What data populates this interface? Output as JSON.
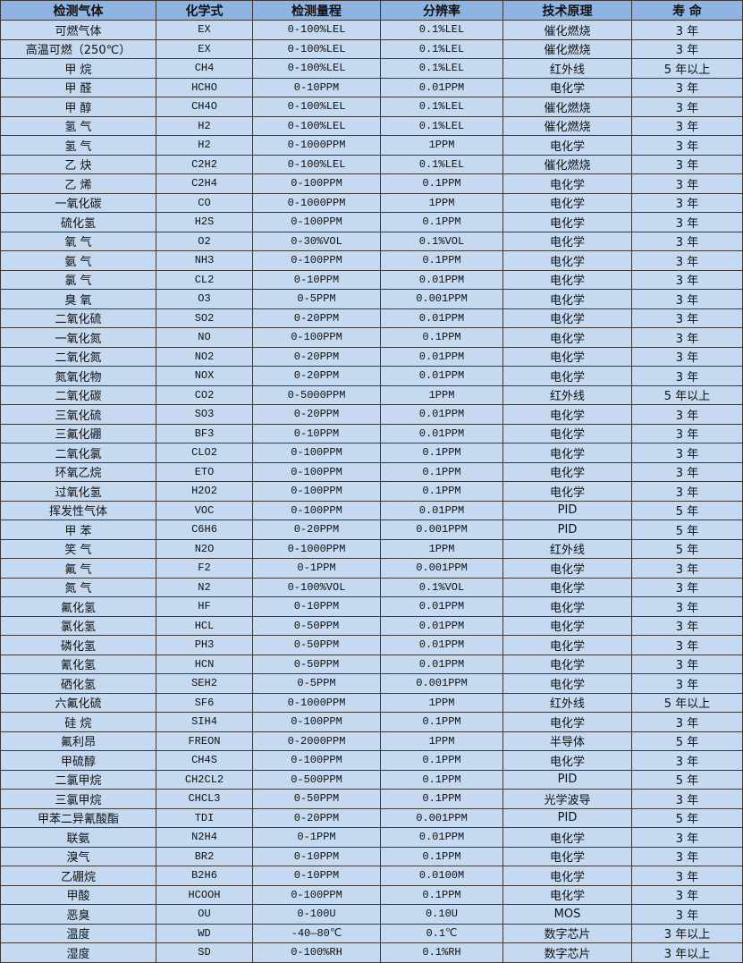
{
  "table": {
    "headers": [
      "检测气体",
      "化学式",
      "检测量程",
      "分辨率",
      "技术原理",
      "寿 命"
    ],
    "rows": [
      [
        "可燃气体",
        "EX",
        "0-100%LEL",
        "0.1%LEL",
        "催化燃烧",
        "3 年"
      ],
      [
        "高温可燃（250℃）",
        "EX",
        "0-100%LEL",
        "0.1%LEL",
        "催化燃烧",
        "3 年"
      ],
      [
        "甲 烷",
        "CH4",
        "0-100%LEL",
        "0.1%LEL",
        "红外线",
        "5 年以上"
      ],
      [
        "甲 醛",
        "HCHO",
        "0-10PPM",
        "0.01PPM",
        "电化学",
        "3 年"
      ],
      [
        "甲 醇",
        "CH4O",
        "0-100%LEL",
        "0.1%LEL",
        "催化燃烧",
        "3 年"
      ],
      [
        "氢 气",
        "H2",
        "0-100%LEL",
        "0.1%LEL",
        "催化燃烧",
        "3 年"
      ],
      [
        "氢 气",
        "H2",
        "0-1000PPM",
        "1PPM",
        "电化学",
        "3 年"
      ],
      [
        "乙 炔",
        "C2H2",
        "0-100%LEL",
        "0.1%LEL",
        "催化燃烧",
        "3 年"
      ],
      [
        "乙 烯",
        "C2H4",
        "0-100PPM",
        "0.1PPM",
        "电化学",
        "3 年"
      ],
      [
        "一氧化碳",
        "CO",
        "0-1000PPM",
        "1PPM",
        "电化学",
        "3 年"
      ],
      [
        "硫化氢",
        "H2S",
        "0-100PPM",
        "0.1PPM",
        "电化学",
        "3 年"
      ],
      [
        "氧 气",
        "O2",
        "0-30%VOL",
        "0.1%VOL",
        "电化学",
        "3 年"
      ],
      [
        "氨 气",
        "NH3",
        "0-100PPM",
        "0.1PPM",
        "电化学",
        "3 年"
      ],
      [
        "氯 气",
        "CL2",
        "0-10PPM",
        "0.01PPM",
        "电化学",
        "3 年"
      ],
      [
        "臭 氧",
        "O3",
        "0-5PPM",
        "0.001PPM",
        "电化学",
        "3 年"
      ],
      [
        "二氧化硫",
        "SO2",
        "0-20PPM",
        "0.01PPM",
        "电化学",
        "3 年"
      ],
      [
        "一氧化氮",
        "NO",
        "0-100PPM",
        "0.1PPM",
        "电化学",
        "3 年"
      ],
      [
        "二氧化氮",
        "NO2",
        "0-20PPM",
        "0.01PPM",
        "电化学",
        "3 年"
      ],
      [
        "氮氧化物",
        "NOX",
        "0-20PPM",
        "0.01PPM",
        "电化学",
        "3 年"
      ],
      [
        "二氧化碳",
        "CO2",
        "0-5000PPM",
        "1PPM",
        "红外线",
        "5 年以上"
      ],
      [
        "三氧化硫",
        "SO3",
        "0-20PPM",
        "0.01PPM",
        "电化学",
        "3 年"
      ],
      [
        "三氟化硼",
        "BF3",
        "0-10PPM",
        "0.01PPM",
        "电化学",
        "3 年"
      ],
      [
        "二氧化氯",
        "CLO2",
        "0-100PPM",
        "0.1PPM",
        "电化学",
        "3 年"
      ],
      [
        "环氧乙烷",
        "ETO",
        "0-100PPM",
        "0.1PPM",
        "电化学",
        "3 年"
      ],
      [
        "过氧化氢",
        "H2O2",
        "0-100PPM",
        "0.1PPM",
        "电化学",
        "3 年"
      ],
      [
        "挥发性气体",
        "VOC",
        "0-100PPM",
        "0.01PPM",
        "PID",
        "5 年"
      ],
      [
        "甲 苯",
        "C6H6",
        "0-20PPM",
        "0.001PPM",
        "PID",
        "5 年"
      ],
      [
        "笑 气",
        "N2O",
        "0-1000PPM",
        "1PPM",
        "红外线",
        "5 年"
      ],
      [
        "氟 气",
        "F2",
        "0-1PPM",
        "0.001PPM",
        "电化学",
        "3 年"
      ],
      [
        "氮 气",
        "N2",
        "0-100%VOL",
        "0.1%VOL",
        "电化学",
        "3 年"
      ],
      [
        "氟化氢",
        "HF",
        "0-10PPM",
        "0.01PPM",
        "电化学",
        "3 年"
      ],
      [
        "氯化氢",
        "HCL",
        "0-50PPM",
        "0.01PPM",
        "电化学",
        "3 年"
      ],
      [
        "磷化氢",
        "PH3",
        "0-50PPM",
        "0.01PPM",
        "电化学",
        "3 年"
      ],
      [
        "氰化氢",
        "HCN",
        "0-50PPM",
        "0.01PPM",
        "电化学",
        "3 年"
      ],
      [
        "硒化氢",
        "SEH2",
        "0-5PPM",
        "0.001PPM",
        "电化学",
        "3 年"
      ],
      [
        "六氟化硫",
        "SF6",
        "0-1000PPM",
        "1PPM",
        "红外线",
        "5 年以上"
      ],
      [
        "硅 烷",
        "SIH4",
        "0-100PPM",
        "0.1PPM",
        "电化学",
        "3 年"
      ],
      [
        "氟利昂",
        "FREON",
        "0-2000PPM",
        "1PPM",
        "半导体",
        "5 年"
      ],
      [
        "甲硫醇",
        "CH4S",
        "0-100PPM",
        "0.1PPM",
        "电化学",
        "3 年"
      ],
      [
        "二氯甲烷",
        "CH2CL2",
        "0-500PPM",
        "0.1PPM",
        "PID",
        "5 年"
      ],
      [
        "三氯甲烷",
        "CHCL3",
        "0-50PPM",
        "0.1PPM",
        "光学波导",
        "3 年"
      ],
      [
        "甲苯二异氰酸酯",
        "TDI",
        "0-20PPM",
        "0.001PPM",
        "PID",
        "5 年"
      ],
      [
        "联氨",
        "N2H4",
        "0-1PPM",
        "0.01PPM",
        "电化学",
        "3 年"
      ],
      [
        "溴气",
        "BR2",
        "0-10PPM",
        "0.1PPM",
        "电化学",
        "3 年"
      ],
      [
        "乙硼烷",
        "B2H6",
        "0-10PPM",
        "0.0100M",
        "电化学",
        "3 年"
      ],
      [
        "甲酸",
        "HCOOH",
        "0-100PPM",
        "0.1PPM",
        "电化学",
        "3 年"
      ],
      [
        "恶臭",
        "OU",
        "0-100U",
        "0.10U",
        "MOS",
        "3 年"
      ],
      [
        "温度",
        "WD",
        "-40—80℃",
        "0.1℃",
        "数字芯片",
        "3 年以上"
      ],
      [
        "湿度",
        "SD",
        "0-100%RH",
        "0.1%RH",
        "数字芯片",
        "3 年以上"
      ]
    ]
  },
  "colors": {
    "header_bg": "#8db4e2",
    "row_bg": "#c5d9f1",
    "border": "#3a3a3a"
  }
}
